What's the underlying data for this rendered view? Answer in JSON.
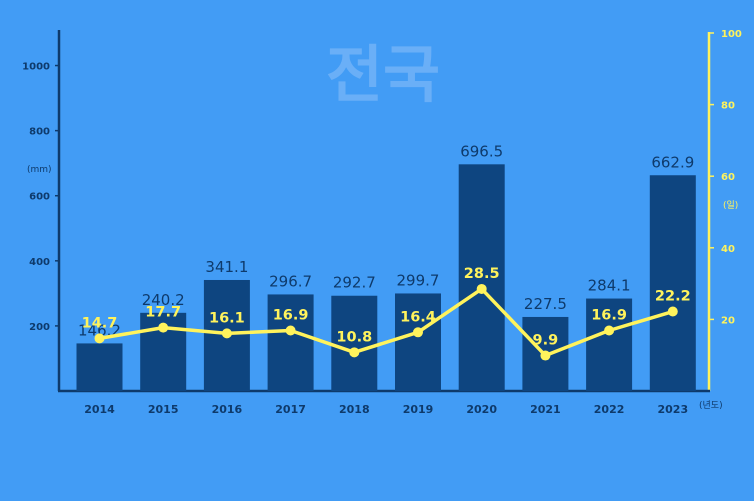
{
  "page": {
    "background": "#429cf5"
  },
  "chart_data": {
    "type": "bar+line",
    "title": "전국",
    "categories": [
      "2014",
      "2015",
      "2016",
      "2017",
      "2018",
      "2019",
      "2020",
      "2021",
      "2022",
      "2023"
    ],
    "x_unit": "(년도)",
    "series": [
      {
        "kind": "bar",
        "axis": "left",
        "unit": "(mm)",
        "color": "#0e4580",
        "label_color": "#0e3a6b",
        "values": [
          146.2,
          240.2,
          341.1,
          296.7,
          292.7,
          299.7,
          696.5,
          227.5,
          284.1,
          662.9
        ]
      },
      {
        "kind": "line",
        "axis": "right",
        "unit": "(일)",
        "color": "#fff35c",
        "label_color": "#fff35c",
        "values": [
          14.7,
          17.7,
          16.1,
          16.9,
          10.8,
          16.4,
          28.5,
          9.9,
          16.9,
          22.2
        ]
      }
    ],
    "y_left": {
      "ticks": [
        200,
        400,
        600,
        800,
        1000
      ],
      "range": [
        0,
        1100
      ],
      "color": "#0e3a6b"
    },
    "y_right": {
      "ticks": [
        20,
        40,
        60,
        80,
        100
      ],
      "range": [
        0,
        100
      ],
      "color": "#fff35c"
    },
    "grid": false
  }
}
